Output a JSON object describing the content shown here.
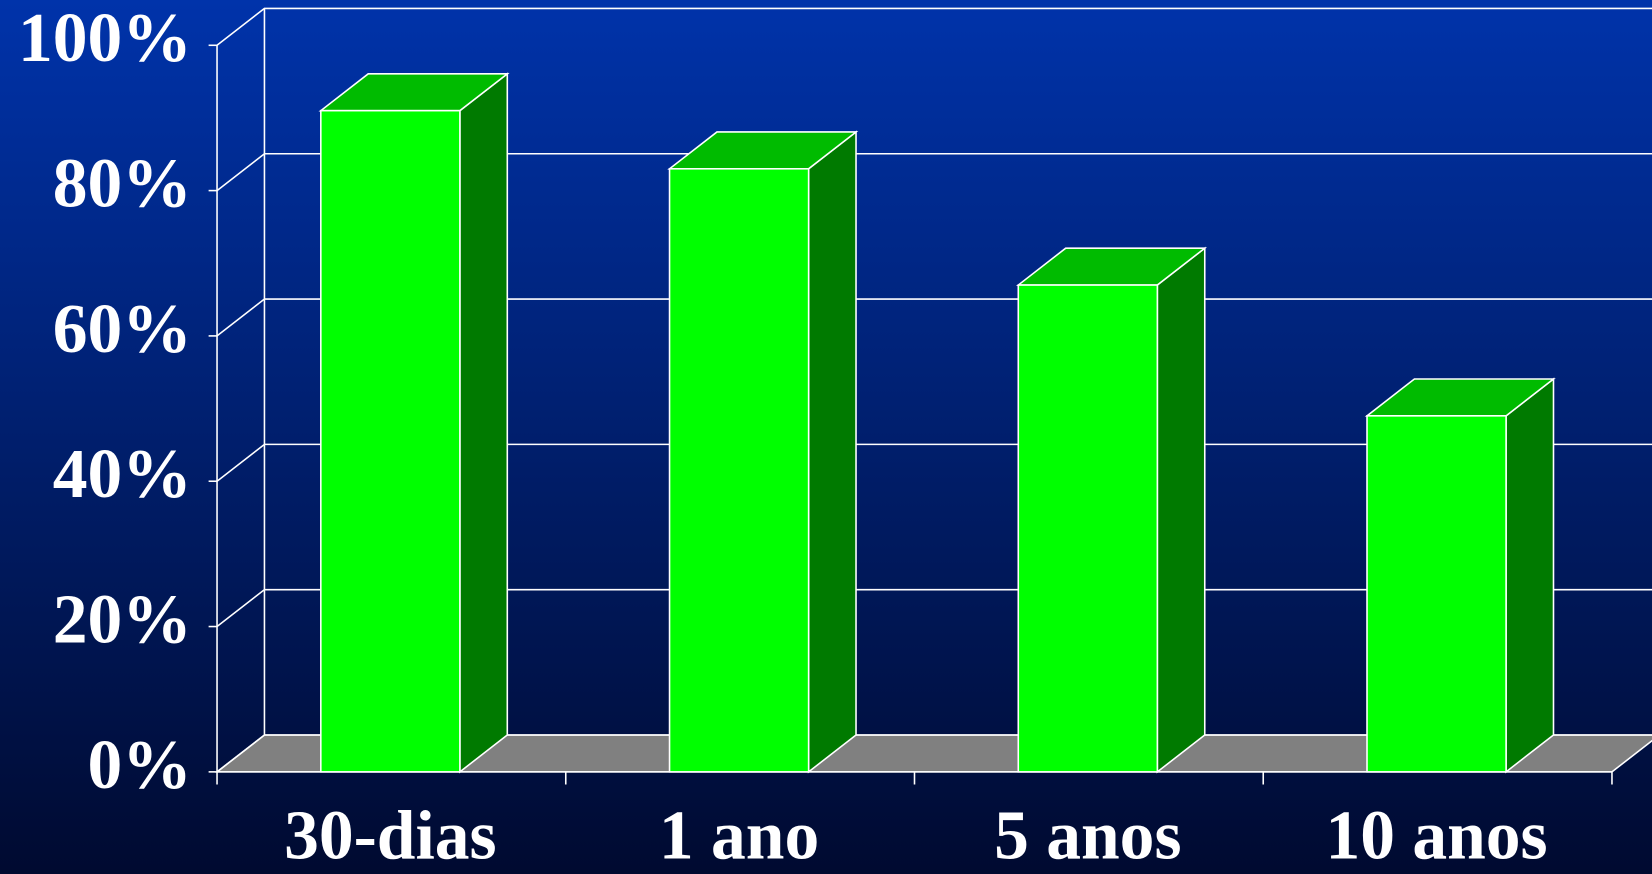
{
  "chart_data": {
    "type": "bar3d",
    "categories": [
      "30-dias",
      "1 ano",
      "5 anos",
      "10 anos"
    ],
    "values": [
      91,
      83,
      67,
      49
    ],
    "color": "#00ff00",
    "side_color": "#007a00",
    "top_color": "#00bb00",
    "ylim": [
      0,
      100
    ],
    "yticks": [
      {
        "value": 0,
        "label": "0%"
      },
      {
        "value": 20,
        "label": "20%"
      },
      {
        "value": 40,
        "label": "40%"
      },
      {
        "value": 60,
        "label": "60%"
      },
      {
        "value": 80,
        "label": "80%"
      },
      {
        "value": 100,
        "label": "100%"
      }
    ],
    "grid": true
  }
}
